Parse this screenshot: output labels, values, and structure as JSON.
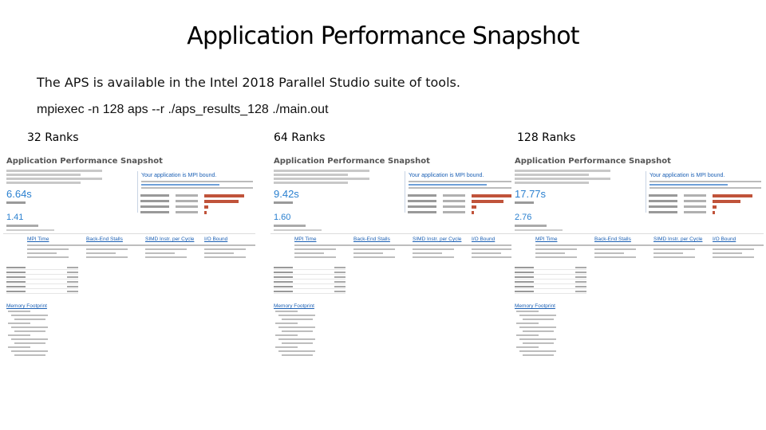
{
  "slide": {
    "title": "Application Performance Snapshot",
    "subtitle": "The APS is available in the Intel 2018 Parallel Studio suite of tools.",
    "command": "mpiexec -n 128 aps --r ./aps_results_128 ./main.out"
  },
  "reports": [
    {
      "label": "32 Ranks",
      "report_title": "Application Performance Snapshot",
      "bound_message": "Your application is MPI bound.",
      "elapsed": "6.64s",
      "cpi": "1.41",
      "metrics": [
        "MPI Time",
        "Back-End Stalls",
        "SIMD Instr. per Cycle",
        "I/O Bound"
      ],
      "memory": "Memory Footprint",
      "bar_fractions": [
        1.0,
        0.85,
        0.1,
        0.05
      ]
    },
    {
      "label": "64 Ranks",
      "report_title": "Application Performance Snapshot",
      "bound_message": "Your application is MPI bound.",
      "elapsed": "9.42s",
      "cpi": "1.60",
      "metrics": [
        "MPI Time",
        "Back-End Stalls",
        "SIMD Instr. per Cycle",
        "I/O Bound"
      ],
      "memory": "Memory Footprint",
      "bar_fractions": [
        1.0,
        0.8,
        0.12,
        0.05
      ]
    },
    {
      "label": "128 Ranks",
      "report_title": "Application Performance Snapshot",
      "bound_message": "Your application is MPI bound.",
      "elapsed": "17.77s",
      "cpi": "2.76",
      "metrics": [
        "MPI Time",
        "Back-End Stalls",
        "SIMD Instr. per Cycle",
        "I/O Bound"
      ],
      "memory": "Memory Footprint",
      "bar_fractions": [
        1.0,
        0.7,
        0.1,
        0.05
      ]
    }
  ],
  "colors": {
    "link": "#1a5fb4",
    "value": "#2a80d0",
    "bar": "#c0533a"
  }
}
